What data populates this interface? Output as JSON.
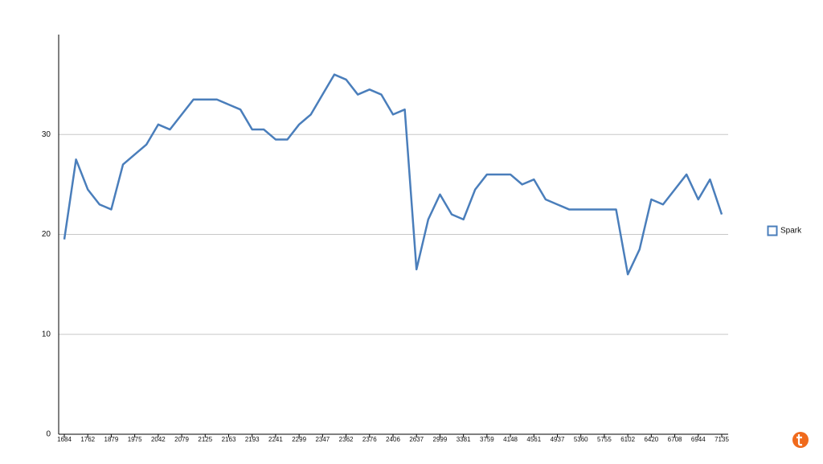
{
  "chart_data": {
    "type": "line",
    "categories": [
      "1684",
      null,
      "1762",
      null,
      "1879",
      null,
      "1975",
      null,
      "2042",
      null,
      "2079",
      null,
      "2125",
      null,
      "2163",
      null,
      "2193",
      null,
      "2241",
      null,
      "2299",
      null,
      "2347",
      null,
      "2362",
      null,
      "2376",
      null,
      "2406",
      null,
      "2637",
      null,
      "2999",
      null,
      "3381",
      null,
      "3759",
      null,
      "4148",
      null,
      "4561",
      null,
      "4937",
      null,
      "5360",
      null,
      "5755",
      null,
      "6102",
      null,
      "6420",
      null,
      "6708",
      null,
      "6944",
      null,
      "7135"
    ],
    "series": [
      {
        "name": "Spark",
        "color": "#4a7ebb",
        "values": [
          19.5,
          27.5,
          24.5,
          23,
          22.5,
          27,
          28,
          29,
          31,
          30.5,
          32,
          33.5,
          33.5,
          33.5,
          33,
          32.5,
          30.5,
          30.5,
          29.5,
          29.5,
          31,
          32,
          34,
          36,
          35.5,
          34,
          34.5,
          34,
          32,
          32.5,
          16.5,
          21.5,
          24,
          22,
          21.5,
          24.5,
          26,
          26,
          26,
          25,
          25.5,
          23.5,
          23,
          22.5,
          22.5,
          22.5,
          22.5,
          22.5,
          16,
          18.5,
          23.5,
          23,
          24.5,
          26,
          23.5,
          25.5,
          22
        ]
      }
    ],
    "ylim": [
      0,
      40
    ],
    "yticks": [
      0,
      10,
      20,
      30
    ],
    "grid": true,
    "legend": "right"
  }
}
